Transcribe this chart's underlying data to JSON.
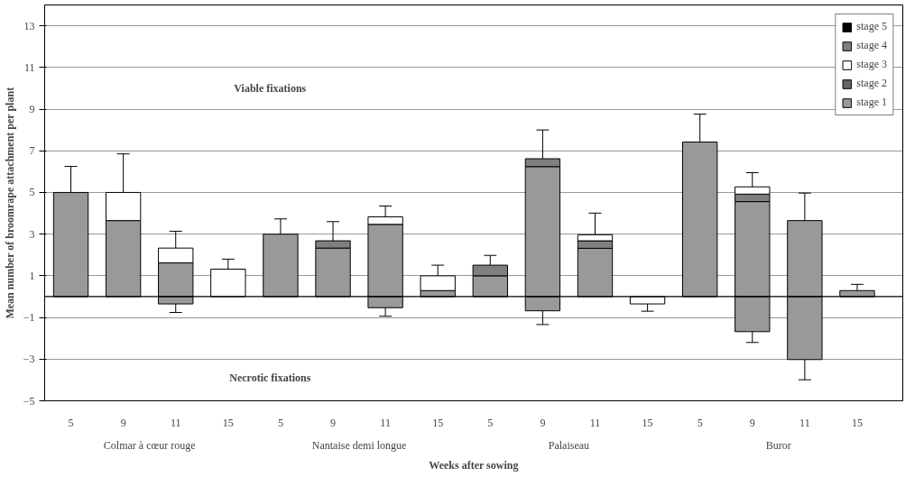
{
  "chart_data": {
    "type": "bar",
    "stacked": true,
    "ylabel": "Mean number of broomrape attachment per plant",
    "xlabel": "Weeks after sowing",
    "categories": [
      "5",
      "9",
      "11",
      "15",
      "5",
      "9",
      "11",
      "15",
      "5",
      "9",
      "11",
      "15",
      "5",
      "9",
      "11",
      "15"
    ],
    "annotations": [
      "Viable fixations",
      "Necrotic fixations",
      "Colmar à cœur rouge",
      "Nantaise demi longue",
      "Palaiseau",
      "Buror"
    ],
    "ylim": [
      -5,
      14
    ],
    "yticks": [
      -5,
      -3,
      -1,
      1,
      3,
      5,
      7,
      9,
      11,
      13
    ],
    "grid": "y",
    "legend": "top right",
    "series": [
      {
        "name": "stage 1",
        "color": "#999999",
        "values": [
          5,
          3.65,
          1.62,
          null,
          3,
          2.33,
          3.47,
          0.29,
          1,
          6.24,
          2.32,
          null,
          7.42,
          4.56,
          3.65,
          0.29
        ],
        "errors": [
          [
            5,
            6.25
          ],
          null,
          null,
          null,
          [
            3,
            3.73
          ],
          null,
          null,
          null,
          null,
          null,
          null,
          null,
          [
            7.42,
            8.76
          ],
          null,
          [
            3.65,
            4.97
          ],
          [
            0.29,
            0.59
          ]
        ]
      },
      {
        "name": "stage 2",
        "color": "#666666",
        "values": [
          null,
          null,
          null,
          null,
          null,
          null,
          null,
          null,
          null,
          null,
          null,
          null,
          null,
          null,
          null,
          null
        ]
      },
      {
        "name": "stage 3",
        "color": "#ffffff",
        "values": [
          null,
          1.35,
          0.71,
          1.32,
          null,
          null,
          0.36,
          0.71,
          null,
          null,
          null,
          null,
          null,
          null,
          null,
          null
        ],
        "errors": [
          null,
          [
            5,
            6.85
          ],
          [
            2.33,
            3.14
          ],
          [
            1.32,
            1.8
          ],
          null,
          null,
          [
            3.83,
            4.35
          ],
          [
            1,
            1.51
          ],
          null,
          null,
          null,
          null,
          null,
          null,
          null,
          null
        ]
      },
      {
        "name": "stage 4",
        "color": "#7f7f7f",
        "values": [
          null,
          null,
          null,
          null,
          null,
          0.35,
          null,
          null,
          0.51,
          0.38,
          0.36,
          null,
          null,
          0.36,
          null,
          null
        ],
        "errors": [
          null,
          null,
          null,
          null,
          null,
          [
            2.68,
            3.6
          ],
          null,
          null,
          [
            1.51,
            1.98
          ],
          [
            6.62,
            8
          ],
          null,
          null,
          null,
          null,
          null,
          null
        ]
      },
      {
        "name": "stage 5",
        "color": "#000000",
        "values": [
          null,
          null,
          null,
          null,
          null,
          null,
          null,
          null,
          null,
          null,
          null,
          null,
          null,
          null,
          null,
          null
        ]
      },
      {
        "color": "#ffffff",
        "values": [
          null,
          null,
          null,
          null,
          null,
          null,
          null,
          null,
          null,
          null,
          0.29,
          null,
          null,
          0.35,
          null,
          null
        ],
        "errors": [
          null,
          null,
          null,
          null,
          null,
          null,
          null,
          null,
          null,
          null,
          [
            2.97,
            4.01
          ],
          null,
          null,
          [
            5.27,
            5.95
          ],
          null,
          null
        ]
      },
      {
        "color": "#999999",
        "values": [
          null,
          null,
          -0.35,
          null,
          null,
          null,
          -0.53,
          null,
          null,
          -0.68,
          null,
          null,
          null,
          -1.68,
          -3.02,
          null
        ],
        "errors": [
          null,
          null,
          [
            -0.76,
            -0.35
          ],
          null,
          null,
          null,
          [
            -0.94,
            -0.53
          ],
          null,
          null,
          [
            -1.34,
            -0.68
          ],
          null,
          null,
          null,
          [
            -2.2,
            -1.68
          ],
          [
            -3.99,
            -3.02
          ],
          null
        ]
      },
      {
        "color": "#ffffff",
        "values": [
          null,
          null,
          null,
          null,
          null,
          null,
          null,
          null,
          null,
          null,
          null,
          -0.35,
          null,
          null,
          null,
          null
        ],
        "errors": [
          null,
          null,
          null,
          null,
          null,
          null,
          null,
          null,
          null,
          null,
          null,
          [
            -0.7,
            -0.35
          ],
          null,
          null,
          null,
          null
        ]
      }
    ]
  }
}
